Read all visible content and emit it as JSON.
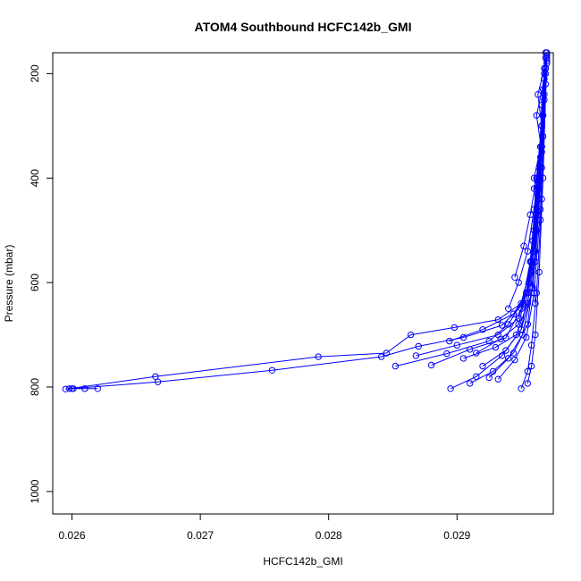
{
  "chart_data": {
    "type": "line",
    "title": "ATOM4 Southbound HCFC142b_GMI",
    "xlabel": "HCFC142b_GMI",
    "ylabel": "Pressure (mbar)",
    "xlim": [
      0.02585,
      0.02975
    ],
    "ylim": [
      1043,
      160
    ],
    "y_axis_reversed": true,
    "x_ticks": [
      0.026,
      0.027,
      0.028,
      0.029
    ],
    "x_tick_labels": [
      "0.026",
      "0.027",
      "0.028",
      "0.029"
    ],
    "y_ticks": [
      200,
      400,
      600,
      800,
      1000
    ],
    "y_tick_labels": [
      "200",
      "400",
      "600",
      "800",
      "1000"
    ],
    "grid": false,
    "legend": "none",
    "series_color": "#0000ff",
    "marker": "open-circle",
    "series": [
      {
        "x": [
          0.02598,
          0.02665,
          0.02792,
          0.02845,
          0.02864,
          0.02898,
          0.02932,
          0.0295,
          0.02958,
          0.02962,
          0.02965,
          0.02967,
          0.02968,
          0.02969
        ],
        "y": [
          803,
          780,
          742,
          735,
          700,
          686,
          671,
          640,
          560,
          460,
          360,
          280,
          210,
          160
        ]
      },
      {
        "x": [
          0.02595,
          0.02667,
          0.02756,
          0.02841,
          0.0287,
          0.02905,
          0.02935,
          0.02952,
          0.0296,
          0.02963,
          0.02966,
          0.02968,
          0.0297
        ],
        "y": [
          804,
          790,
          768,
          742,
          722,
          705,
          682,
          640,
          540,
          440,
          340,
          250,
          165
        ]
      },
      {
        "x": [
          0.02601,
          0.0261,
          0.0262,
          0.0261,
          0.026
        ],
        "y": [
          803,
          803,
          803,
          803,
          803
        ]
      },
      {
        "x": [
          0.02852,
          0.02892,
          0.02925,
          0.0294,
          0.02955,
          0.0296,
          0.02964,
          0.02966,
          0.02969
        ],
        "y": [
          760,
          736,
          712,
          680,
          620,
          500,
          380,
          260,
          170
        ]
      },
      {
        "x": [
          0.02868,
          0.029,
          0.02932,
          0.02948,
          0.02956,
          0.02961,
          0.02965,
          0.02968
        ],
        "y": [
          740,
          720,
          700,
          668,
          600,
          480,
          340,
          190
        ]
      },
      {
        "x": [
          0.0288,
          0.0291,
          0.02938,
          0.0295,
          0.02957,
          0.02962,
          0.02966,
          0.0297
        ],
        "y": [
          758,
          728,
          706,
          650,
          560,
          420,
          300,
          175
        ]
      },
      {
        "x": [
          0.02894,
          0.0292,
          0.02944,
          0.02954,
          0.02959,
          0.02963,
          0.02967
        ],
        "y": [
          712,
          690,
          660,
          620,
          520,
          400,
          230
        ]
      },
      {
        "x": [
          0.02905,
          0.0293,
          0.02946,
          0.02955,
          0.02961,
          0.02965,
          0.02969
        ],
        "y": [
          745,
          724,
          700,
          640,
          540,
          380,
          200
        ]
      },
      {
        "x": [
          0.02915,
          0.02934,
          0.02948,
          0.02956,
          0.02962,
          0.02966,
          0.0297
        ],
        "y": [
          735,
          708,
          680,
          600,
          500,
          340,
          180
        ]
      },
      {
        "x": [
          0.0292,
          0.02938,
          0.0295,
          0.02958,
          0.02963,
          0.02967
        ],
        "y": [
          760,
          730,
          690,
          620,
          480,
          280
        ]
      },
      {
        "x": [
          0.02925,
          0.0294,
          0.02951,
          0.02959,
          0.02964,
          0.02968
        ],
        "y": [
          782,
          745,
          700,
          610,
          440,
          240
        ]
      },
      {
        "x": [
          0.02895,
          0.02915,
          0.02935,
          0.0295,
          0.02958,
          0.02964,
          0.02969
        ],
        "y": [
          803,
          780,
          740,
          690,
          580,
          420,
          190
        ]
      },
      {
        "x": [
          0.0291,
          0.02928,
          0.02944,
          0.02955,
          0.02961,
          0.02966,
          0.0297
        ],
        "y": [
          793,
          770,
          735,
          680,
          560,
          380,
          165
        ]
      },
      {
        "x": [
          0.02932,
          0.02945,
          0.02954,
          0.0296,
          0.02965,
          0.02969
        ],
        "y": [
          785,
          748,
          705,
          620,
          460,
          220
        ]
      },
      {
        "x": [
          0.0295,
          0.02955,
          0.02958,
          0.02962,
          0.02966,
          0.0297
        ],
        "y": [
          803,
          770,
          720,
          620,
          440,
          180
        ]
      },
      {
        "x": [
          0.02955,
          0.02958,
          0.02961,
          0.02964,
          0.02967,
          0.0297
        ],
        "y": [
          793,
          760,
          700,
          580,
          400,
          160
        ]
      },
      {
        "x": [
          0.0294,
          0.02948,
          0.02955,
          0.0296,
          0.02965,
          0.02968
        ],
        "y": [
          650,
          600,
          540,
          460,
          340,
          200
        ]
      },
      {
        "x": [
          0.02945,
          0.02952,
          0.02957,
          0.02962,
          0.02966,
          0.02969
        ],
        "y": [
          590,
          530,
          470,
          400,
          300,
          190
        ]
      },
      {
        "x": [
          0.02957,
          0.02963,
          0.0296,
          0.02966,
          0.02962,
          0.02968
        ],
        "y": [
          560,
          480,
          420,
          350,
          280,
          210
        ]
      },
      {
        "x": [
          0.02961,
          0.02958,
          0.02965,
          0.0296,
          0.02967,
          0.02963,
          0.0297
        ],
        "y": [
          640,
          560,
          480,
          400,
          320,
          240,
          170
        ]
      }
    ]
  }
}
